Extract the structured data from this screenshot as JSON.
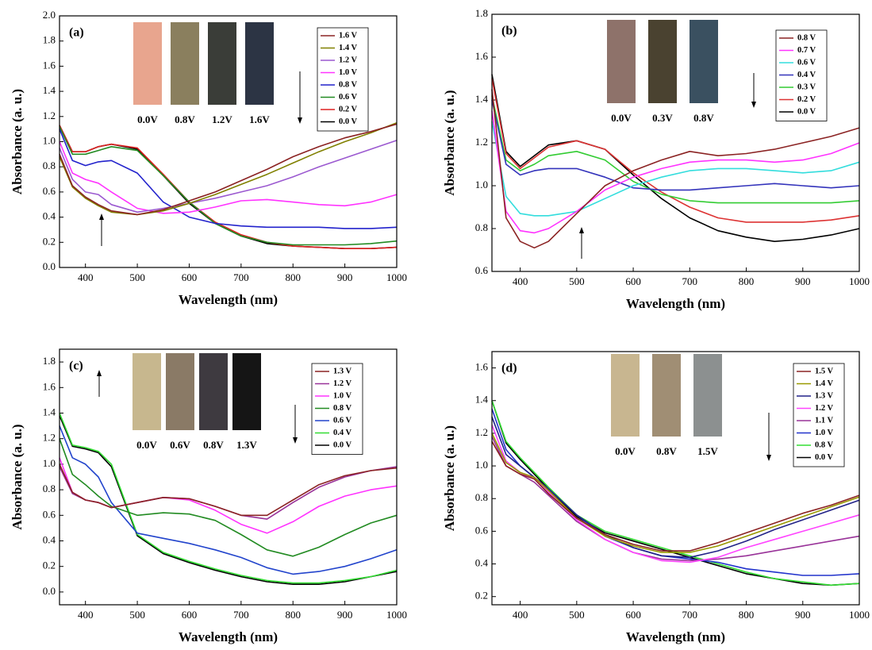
{
  "chart_data": [
    {
      "type": "line",
      "panel_label": "(a)",
      "xlabel": "Wavelength (nm)",
      "ylabel": "Absorbance (a. u.)",
      "xlim": [
        350,
        1000
      ],
      "xticks": [
        400,
        500,
        600,
        700,
        800,
        900,
        1000
      ],
      "ylim": [
        0,
        2.0
      ],
      "yticks": [
        {
          "value": 0,
          "label": "0.0"
        },
        0.2,
        0.4,
        0.6,
        0.8,
        {
          "value": 1,
          "label": "1.0"
        },
        1.2,
        1.4,
        1.6,
        1.8,
        {
          "value": 2,
          "label": "2.0"
        }
      ],
      "x": [
        350,
        375,
        400,
        425,
        450,
        500,
        550,
        600,
        650,
        700,
        750,
        800,
        850,
        900,
        950,
        1000
      ],
      "swatches": [
        {
          "label": "0.0V",
          "color": "#e8a58e"
        },
        {
          "label": "0.8V",
          "color": "#8a7f5e"
        },
        {
          "label": "1.2V",
          "color": "#3a3d38"
        },
        {
          "label": "1.6V",
          "color": "#2c3444"
        }
      ],
      "series": [
        {
          "name": "1.6 V",
          "color": "#8b2323",
          "values": [
            0.9,
            0.65,
            0.56,
            0.5,
            0.45,
            0.42,
            0.46,
            0.53,
            0.6,
            0.69,
            0.78,
            0.88,
            0.96,
            1.03,
            1.08,
            1.14
          ]
        },
        {
          "name": "1.4 V",
          "color": "#808000",
          "values": [
            0.88,
            0.64,
            0.55,
            0.49,
            0.44,
            0.42,
            0.45,
            0.51,
            0.58,
            0.66,
            0.74,
            0.83,
            0.92,
            1.0,
            1.07,
            1.15
          ]
        },
        {
          "name": "1.2 V",
          "color": "#9b59d0",
          "values": [
            0.95,
            0.7,
            0.6,
            0.58,
            0.5,
            0.44,
            0.47,
            0.51,
            0.55,
            0.6,
            0.65,
            0.72,
            0.8,
            0.87,
            0.94,
            1.01
          ]
        },
        {
          "name": "1.0 V",
          "color": "#ff33ff",
          "values": [
            1.0,
            0.75,
            0.7,
            0.67,
            0.6,
            0.47,
            0.43,
            0.44,
            0.48,
            0.53,
            0.54,
            0.52,
            0.5,
            0.49,
            0.52,
            0.58
          ]
        },
        {
          "name": "0.8 V",
          "color": "#2222cc",
          "values": [
            1.1,
            0.85,
            0.81,
            0.84,
            0.85,
            0.75,
            0.52,
            0.4,
            0.35,
            0.33,
            0.32,
            0.32,
            0.32,
            0.31,
            0.31,
            0.32
          ]
        },
        {
          "name": "0.6 V",
          "color": "#228b22",
          "values": [
            1.12,
            0.9,
            0.9,
            0.93,
            0.96,
            0.93,
            0.73,
            0.52,
            0.35,
            0.25,
            0.2,
            0.18,
            0.18,
            0.18,
            0.19,
            0.21
          ]
        },
        {
          "name": "0.2 V",
          "color": "#dd2222",
          "values": [
            1.13,
            0.92,
            0.92,
            0.96,
            0.98,
            0.95,
            0.74,
            0.52,
            0.36,
            0.26,
            0.2,
            0.17,
            0.16,
            0.15,
            0.15,
            0.16
          ]
        },
        {
          "name": "0.0 V",
          "color": "#000000",
          "values": [
            1.13,
            0.92,
            0.92,
            0.96,
            0.98,
            0.94,
            0.73,
            0.51,
            0.35,
            0.25,
            0.19,
            0.17,
            0.16,
            0.15,
            0.15,
            0.16
          ]
        }
      ]
    },
    {
      "type": "line",
      "panel_label": "(b)",
      "xlabel": "Wavelength (nm)",
      "ylabel": "Absorbance (a. u.)",
      "xlim": [
        350,
        1000
      ],
      "xticks": [
        400,
        500,
        600,
        700,
        800,
        900,
        1000
      ],
      "ylim": [
        0.6,
        1.8
      ],
      "yticks": [
        0.6,
        0.8,
        {
          "value": 1,
          "label": "1.0"
        },
        1.2,
        1.4,
        1.6,
        1.8
      ],
      "x": [
        350,
        375,
        400,
        425,
        450,
        500,
        550,
        600,
        650,
        700,
        750,
        800,
        850,
        900,
        950,
        1000
      ],
      "swatches": [
        {
          "label": "0.0V",
          "color": "#8e726a"
        },
        {
          "label": "0.3V",
          "color": "#4a4230"
        },
        {
          "label": "0.8V",
          "color": "#3a5060"
        }
      ],
      "series": [
        {
          "name": "0.8 V",
          "color": "#8b2323",
          "values": [
            1.45,
            0.85,
            0.74,
            0.71,
            0.74,
            0.87,
            1.0,
            1.07,
            1.12,
            1.16,
            1.14,
            1.15,
            1.17,
            1.2,
            1.23,
            1.27
          ]
        },
        {
          "name": "0.7 V",
          "color": "#ff33ff",
          "values": [
            1.35,
            0.88,
            0.79,
            0.78,
            0.8,
            0.88,
            0.98,
            1.04,
            1.08,
            1.11,
            1.12,
            1.12,
            1.11,
            1.12,
            1.15,
            1.2
          ]
        },
        {
          "name": "0.6 V",
          "color": "#33dddd",
          "values": [
            1.3,
            0.95,
            0.87,
            0.86,
            0.86,
            0.88,
            0.94,
            1.0,
            1.04,
            1.07,
            1.08,
            1.08,
            1.07,
            1.06,
            1.07,
            1.11
          ]
        },
        {
          "name": "0.4 V",
          "color": "#3333bb",
          "values": [
            1.4,
            1.1,
            1.05,
            1.07,
            1.08,
            1.08,
            1.04,
            0.99,
            0.98,
            0.98,
            0.99,
            1.0,
            1.01,
            1.0,
            0.99,
            1.0
          ]
        },
        {
          "name": "0.3 V",
          "color": "#33cc33",
          "values": [
            1.42,
            1.12,
            1.07,
            1.1,
            1.14,
            1.16,
            1.12,
            1.02,
            0.96,
            0.93,
            0.92,
            0.92,
            0.92,
            0.92,
            0.92,
            0.93
          ]
        },
        {
          "name": "0.2 V",
          "color": "#dd3333",
          "values": [
            1.5,
            1.15,
            1.08,
            1.13,
            1.18,
            1.21,
            1.17,
            1.06,
            0.97,
            0.9,
            0.85,
            0.83,
            0.83,
            0.83,
            0.84,
            0.86
          ]
        },
        {
          "name": "0.0 V",
          "color": "#000000",
          "values": [
            1.52,
            1.16,
            1.09,
            1.14,
            1.19,
            1.21,
            1.17,
            1.05,
            0.94,
            0.85,
            0.79,
            0.76,
            0.74,
            0.75,
            0.77,
            0.8
          ]
        }
      ]
    },
    {
      "type": "line",
      "panel_label": "(c)",
      "xlabel": "Wavelength (nm)",
      "ylabel": "Absorbance (a. u.)",
      "xlim": [
        350,
        1000
      ],
      "xticks": [
        400,
        500,
        600,
        700,
        800,
        900,
        1000
      ],
      "ylim": [
        -0.1,
        1.9
      ],
      "yticks": [
        {
          "value": 0,
          "label": "0.0"
        },
        0.2,
        0.4,
        0.6,
        0.8,
        {
          "value": 1,
          "label": "1.0"
        },
        1.2,
        1.4,
        1.6,
        1.8
      ],
      "x": [
        350,
        375,
        400,
        425,
        450,
        500,
        550,
        600,
        650,
        700,
        750,
        800,
        850,
        900,
        950,
        1000
      ],
      "swatches": [
        {
          "label": "0.0V",
          "color": "#c7b78e"
        },
        {
          "label": "0.6V",
          "color": "#8a7a66"
        },
        {
          "label": "0.8V",
          "color": "#3e3a40"
        },
        {
          "label": "1.3V",
          "color": "#151515"
        }
      ],
      "series": [
        {
          "name": "1.3 V",
          "color": "#8b2323",
          "values": [
            1.0,
            0.78,
            0.72,
            0.7,
            0.66,
            0.7,
            0.74,
            0.73,
            0.67,
            0.6,
            0.6,
            0.72,
            0.84,
            0.91,
            0.95,
            0.97
          ]
        },
        {
          "name": "1.2 V",
          "color": "#993399",
          "values": [
            0.98,
            0.77,
            0.72,
            0.7,
            0.66,
            0.7,
            0.74,
            0.73,
            0.67,
            0.6,
            0.57,
            0.7,
            0.82,
            0.9,
            0.95,
            0.98
          ]
        },
        {
          "name": "1.0 V",
          "color": "#ff33ff",
          "values": [
            1.05,
            0.78,
            0.72,
            0.7,
            0.66,
            0.7,
            0.74,
            0.72,
            0.64,
            0.53,
            0.46,
            0.55,
            0.67,
            0.75,
            0.8,
            0.83
          ]
        },
        {
          "name": "0.8 V",
          "color": "#228b22",
          "values": [
            1.2,
            0.92,
            0.84,
            0.75,
            0.67,
            0.6,
            0.62,
            0.61,
            0.56,
            0.45,
            0.33,
            0.28,
            0.35,
            0.45,
            0.54,
            0.6
          ]
        },
        {
          "name": "0.6 V",
          "color": "#2244cc",
          "values": [
            1.3,
            1.05,
            1.0,
            0.9,
            0.7,
            0.46,
            0.42,
            0.38,
            0.33,
            0.27,
            0.19,
            0.14,
            0.16,
            0.2,
            0.26,
            0.33
          ]
        },
        {
          "name": "0.4 V",
          "color": "#33dd33",
          "values": [
            1.4,
            1.15,
            1.13,
            1.1,
            1.0,
            0.45,
            0.31,
            0.24,
            0.18,
            0.13,
            0.09,
            0.07,
            0.07,
            0.09,
            0.12,
            0.17
          ]
        },
        {
          "name": "0.0 V",
          "color": "#000000",
          "values": [
            1.38,
            1.14,
            1.12,
            1.09,
            0.98,
            0.44,
            0.3,
            0.23,
            0.17,
            0.12,
            0.08,
            0.06,
            0.06,
            0.08,
            0.12,
            0.16
          ]
        }
      ]
    },
    {
      "type": "line",
      "panel_label": "(d)",
      "xlabel": "Wavelength (nm)",
      "ylabel": "Absorbance (a. u.)",
      "xlim": [
        350,
        1000
      ],
      "xticks": [
        400,
        500,
        600,
        700,
        800,
        900,
        1000
      ],
      "ylim": [
        0.15,
        1.7
      ],
      "yticks": [
        0.2,
        0.4,
        0.6,
        0.8,
        {
          "value": 1,
          "label": "1.0"
        },
        1.2,
        1.4,
        1.6
      ],
      "x": [
        350,
        375,
        400,
        425,
        450,
        500,
        550,
        600,
        650,
        700,
        750,
        800,
        850,
        900,
        950,
        1000
      ],
      "swatches": [
        {
          "label": "0.0V",
          "color": "#c8b690"
        },
        {
          "label": "0.8V",
          "color": "#a08e74"
        },
        {
          "label": "1.5V",
          "color": "#8c9090"
        }
      ],
      "series": [
        {
          "name": "1.5 V",
          "color": "#8b2323",
          "values": [
            1.15,
            1.0,
            0.95,
            0.92,
            0.83,
            0.68,
            0.58,
            0.52,
            0.48,
            0.48,
            0.53,
            0.59,
            0.65,
            0.71,
            0.76,
            0.82
          ]
        },
        {
          "name": "1.4 V",
          "color": "#999900",
          "values": [
            1.2,
            1.02,
            0.96,
            0.93,
            0.85,
            0.68,
            0.57,
            0.51,
            0.47,
            0.47,
            0.51,
            0.57,
            0.63,
            0.69,
            0.75,
            0.81
          ]
        },
        {
          "name": "1.3 V",
          "color": "#222288",
          "values": [
            1.3,
            1.07,
            1.0,
            0.93,
            0.86,
            0.7,
            0.58,
            0.5,
            0.45,
            0.44,
            0.48,
            0.54,
            0.61,
            0.67,
            0.73,
            0.79
          ]
        },
        {
          "name": "1.2 V",
          "color": "#ff44ff",
          "values": [
            1.25,
            1.03,
            0.96,
            0.92,
            0.84,
            0.67,
            0.55,
            0.47,
            0.42,
            0.41,
            0.44,
            0.5,
            0.55,
            0.6,
            0.65,
            0.7
          ]
        },
        {
          "name": "1.1 V",
          "color": "#993399",
          "values": [
            1.18,
            1.0,
            0.95,
            0.9,
            0.82,
            0.66,
            0.55,
            0.47,
            0.43,
            0.42,
            0.43,
            0.45,
            0.48,
            0.51,
            0.54,
            0.57
          ]
        },
        {
          "name": "1.0 V",
          "color": "#2233cc",
          "values": [
            1.35,
            1.1,
            1.0,
            0.93,
            0.86,
            0.7,
            0.57,
            0.5,
            0.45,
            0.43,
            0.41,
            0.37,
            0.35,
            0.33,
            0.33,
            0.34
          ]
        },
        {
          "name": "0.8 V",
          "color": "#33dd33",
          "values": [
            1.4,
            1.15,
            1.05,
            0.96,
            0.87,
            0.7,
            0.6,
            0.55,
            0.5,
            0.45,
            0.4,
            0.35,
            0.31,
            0.29,
            0.27,
            0.28
          ]
        },
        {
          "name": "0.0 V",
          "color": "#000000",
          "values": [
            1.4,
            1.14,
            1.04,
            0.95,
            0.86,
            0.69,
            0.59,
            0.54,
            0.49,
            0.44,
            0.39,
            0.34,
            0.31,
            0.28,
            0.27,
            0.28
          ]
        }
      ]
    }
  ]
}
